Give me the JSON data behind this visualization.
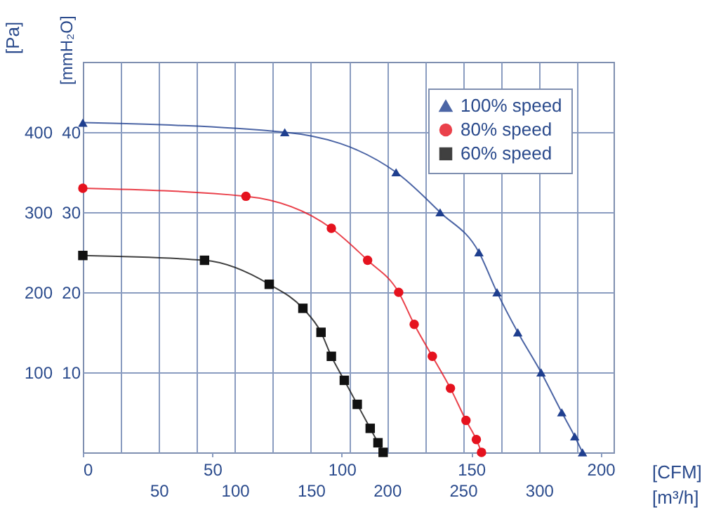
{
  "chart_data": {
    "type": "line",
    "ylabel": "[Pa]",
    "y2label": "[mmH₂O]",
    "xlabel": "[CFM]",
    "x2label": "[m³/h]",
    "xlim": [
      0,
      205
    ],
    "xticks": [
      0,
      50,
      100,
      150,
      200
    ],
    "x2lim": [
      0,
      349
    ],
    "x2ticks": [
      {
        "value": 25,
        "label": null
      },
      50,
      {
        "value": 75,
        "label": null
      },
      100,
      {
        "value": 125,
        "label": null
      },
      150,
      {
        "value": 175,
        "label": null
      },
      200,
      {
        "value": 225,
        "label": null
      },
      250,
      {
        "value": 275,
        "label": null
      },
      300,
      {
        "value": 325,
        "label": null
      }
    ],
    "ylim": [
      0,
      488
    ],
    "yticks": [
      100,
      200,
      300,
      400
    ],
    "y2lim": [
      0,
      48.8
    ],
    "y2ticks": [
      10,
      20,
      30,
      40
    ],
    "grid": true,
    "legend": "top right",
    "line_style": "solid",
    "series": [
      {
        "name": "100% speed",
        "color": "#1f3f8f",
        "marker": "triangle",
        "x": [
          0,
          78,
          121,
          138,
          153,
          160,
          168,
          177,
          185,
          190,
          193
        ],
        "values": [
          412,
          400,
          350,
          300,
          250,
          200,
          150,
          100,
          50,
          20,
          0
        ]
      },
      {
        "name": "80% speed",
        "color": "#e5121e",
        "marker": "circle",
        "x": [
          0,
          63,
          96,
          110,
          122,
          128,
          135,
          142,
          148,
          152,
          154
        ],
        "values": [
          330,
          320,
          280,
          240,
          200,
          160,
          120,
          80,
          40,
          16,
          0
        ]
      },
      {
        "name": "60% speed",
        "color": "#111111",
        "marker": "square",
        "x": [
          0,
          47,
          72,
          85,
          92,
          96,
          101,
          106,
          111,
          114,
          116
        ],
        "values": [
          246,
          240,
          210,
          180,
          150,
          120,
          90,
          60,
          30,
          12,
          0
        ]
      }
    ]
  }
}
